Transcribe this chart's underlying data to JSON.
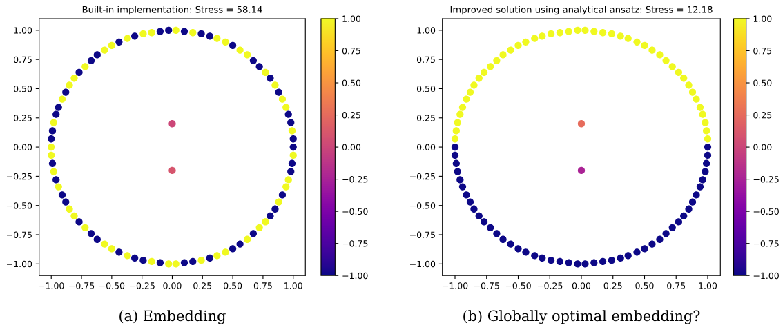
{
  "chart_data": [
    {
      "type": "scatter",
      "title": "Built-in implementation: Stress = 58.14",
      "marker": "circle",
      "grid": false,
      "xlim": [
        -1.1,
        1.1
      ],
      "ylim": [
        -1.1,
        1.1
      ],
      "xticks": [
        {
          "value": -1.0,
          "label": "−1.00"
        },
        {
          "value": -0.75,
          "label": "−0.75"
        },
        {
          "value": -0.5,
          "label": "−0.50"
        },
        {
          "value": -0.25,
          "label": "−0.25"
        },
        {
          "value": 0.0,
          "label": "0.00"
        },
        {
          "value": 0.25,
          "label": "0.25"
        },
        {
          "value": 0.5,
          "label": "0.50"
        },
        {
          "value": 0.75,
          "label": "0.75"
        },
        {
          "value": 1.0,
          "label": "1.00"
        }
      ],
      "yticks": [
        {
          "value": -1.0,
          "label": "−1.00"
        },
        {
          "value": -0.75,
          "label": "−0.75"
        },
        {
          "value": -0.5,
          "label": "−0.50"
        },
        {
          "value": -0.25,
          "label": "−0.25"
        },
        {
          "value": 0.0,
          "label": "0.00"
        },
        {
          "value": 0.25,
          "label": "0.25"
        },
        {
          "value": 0.5,
          "label": "0.50"
        },
        {
          "value": 0.75,
          "label": "0.75"
        },
        {
          "value": 1.0,
          "label": "1.00"
        }
      ],
      "clim": [
        -1.0,
        1.0
      ],
      "cticks": [
        {
          "value": -1.0,
          "label": "−1.00"
        },
        {
          "value": -0.75,
          "label": "−0.75"
        },
        {
          "value": -0.5,
          "label": "−0.50"
        },
        {
          "value": -0.25,
          "label": "−0.25"
        },
        {
          "value": 0.0,
          "label": "0.00"
        },
        {
          "value": 0.25,
          "label": "0.25"
        },
        {
          "value": 0.5,
          "label": "0.50"
        },
        {
          "value": 0.75,
          "label": "0.75"
        },
        {
          "value": 1.0,
          "label": "1.00"
        }
      ],
      "annotations": [
        "(a) Embedding"
      ],
      "series": [
        {
          "x": [
            0.99,
            0.94,
            0.91,
            0.85,
            0.77,
            0.62,
            0.56,
            0.44,
            0.37,
            0.17,
            0.03,
            -0.17,
            -0.24,
            -0.37,
            -0.5,
            -0.56,
            -0.72,
            -0.81,
            -0.85,
            -0.91,
            -0.98,
            -1.0,
            -1.0,
            -0.98,
            -0.94,
            -0.85,
            -0.81,
            -0.72,
            -0.56,
            -0.5,
            -0.37,
            -0.17,
            -0.03,
            0.03,
            0.24,
            0.37,
            0.44,
            0.62,
            0.72,
            0.77,
            0.88,
            0.94,
            0.96,
            1.0
          ],
          "values": [
            0.14,
            0.34,
            0.41,
            0.53,
            0.64,
            0.79,
            0.83,
            0.9,
            0.93,
            0.98,
            1.0,
            0.98,
            0.97,
            0.93,
            0.87,
            0.83,
            0.69,
            0.59,
            0.53,
            0.41,
            0.21,
            0.0,
            -0.07,
            -0.21,
            -0.34,
            -0.53,
            -0.59,
            -0.69,
            -0.83,
            -0.87,
            -0.93,
            -0.98,
            -1.0,
            -1.0,
            -0.97,
            -0.93,
            -0.9,
            -0.79,
            -0.69,
            -0.64,
            -0.47,
            -0.34,
            -0.28,
            -0.07
          ],
          "cvalues": [
            1,
            1,
            1,
            1,
            1,
            1,
            1,
            1,
            1,
            1,
            1,
            1,
            1,
            1,
            1,
            1,
            1,
            1,
            1,
            1,
            1,
            1,
            1,
            1,
            1,
            1,
            1,
            1,
            1,
            1,
            1,
            1,
            1,
            1,
            1,
            1,
            1,
            1,
            1,
            1,
            1,
            1,
            1,
            1
          ]
        },
        {
          "x": [
            1.0,
            1.0,
            0.98,
            0.96,
            0.88,
            0.81,
            0.72,
            0.67,
            0.5,
            0.31,
            0.24,
            0.1,
            -0.03,
            -0.1,
            -0.31,
            -0.44,
            -0.62,
            -0.67,
            -0.77,
            -0.88,
            -0.94,
            -0.96,
            -0.99,
            -1.0,
            -0.99,
            -0.96,
            -0.91,
            -0.88,
            -0.77,
            -0.67,
            -0.62,
            -0.44,
            -0.31,
            -0.24,
            -0.1,
            0.1,
            0.17,
            0.31,
            0.5,
            0.56,
            0.67,
            0.81,
            0.85,
            0.91,
            0.98,
            0.99
          ],
          "values": [
            0.0,
            0.07,
            0.21,
            0.28,
            0.47,
            0.59,
            0.69,
            0.74,
            0.87,
            0.95,
            0.97,
            0.99,
            1.0,
            0.99,
            0.95,
            0.9,
            0.79,
            0.74,
            0.64,
            0.47,
            0.34,
            0.28,
            0.14,
            0.07,
            -0.14,
            -0.28,
            -0.41,
            -0.47,
            -0.64,
            -0.74,
            -0.79,
            -0.9,
            -0.95,
            -0.97,
            -0.99,
            -0.99,
            -0.98,
            -0.95,
            -0.87,
            -0.83,
            -0.74,
            -0.59,
            -0.53,
            -0.41,
            -0.21,
            -0.14
          ],
          "cvalues": [
            -1,
            -1,
            -1,
            -1,
            -1,
            -1,
            -1,
            -1,
            -1,
            -1,
            -1,
            -1,
            -1,
            -1,
            -1,
            -1,
            -1,
            -1,
            -1,
            -1,
            -1,
            -1,
            -1,
            -1,
            -1,
            -1,
            -1,
            -1,
            -1,
            -1,
            -1,
            -1,
            -1,
            -1,
            -1,
            -1,
            -1,
            -1,
            -1,
            -1,
            -1,
            -1,
            -1,
            -1,
            -1,
            -1
          ]
        },
        {
          "x": [
            0.0
          ],
          "values": [
            0.2
          ],
          "cvalues": [
            0.0
          ]
        },
        {
          "x": [
            0.0
          ],
          "values": [
            -0.2
          ],
          "cvalues": [
            0.1
          ]
        }
      ]
    },
    {
      "type": "scatter",
      "title": "Improved solution using analytical ansatz: Stress = 12.18",
      "marker": "circle",
      "grid": false,
      "xlim": [
        -1.1,
        1.1
      ],
      "ylim": [
        -1.1,
        1.1
      ],
      "xticks": [
        {
          "value": -1.0,
          "label": "−1.00"
        },
        {
          "value": -0.75,
          "label": "−0.75"
        },
        {
          "value": -0.5,
          "label": "−0.50"
        },
        {
          "value": -0.25,
          "label": "−0.25"
        },
        {
          "value": 0.0,
          "label": "0.00"
        },
        {
          "value": 0.25,
          "label": "0.25"
        },
        {
          "value": 0.5,
          "label": "0.50"
        },
        {
          "value": 0.75,
          "label": "0.75"
        },
        {
          "value": 1.0,
          "label": "1.00"
        }
      ],
      "yticks": [
        {
          "value": -1.0,
          "label": "−1.00"
        },
        {
          "value": -0.75,
          "label": "−0.75"
        },
        {
          "value": -0.5,
          "label": "−0.50"
        },
        {
          "value": -0.25,
          "label": "−0.25"
        },
        {
          "value": 0.0,
          "label": "0.00"
        },
        {
          "value": 0.25,
          "label": "0.25"
        },
        {
          "value": 0.5,
          "label": "0.50"
        },
        {
          "value": 0.75,
          "label": "0.75"
        },
        {
          "value": 1.0,
          "label": "1.00"
        }
      ],
      "clim": [
        -1.0,
        1.0
      ],
      "cticks": [
        {
          "value": -1.0,
          "label": "−1.00"
        },
        {
          "value": -0.75,
          "label": "−0.75"
        },
        {
          "value": -0.5,
          "label": "−0.50"
        },
        {
          "value": -0.25,
          "label": "−0.25"
        },
        {
          "value": 0.0,
          "label": "0.00"
        },
        {
          "value": 0.25,
          "label": "0.25"
        },
        {
          "value": 0.5,
          "label": "0.50"
        },
        {
          "value": 0.75,
          "label": "0.75"
        },
        {
          "value": 1.0,
          "label": "1.00"
        }
      ],
      "annotations": [
        "(b) Globally optimal embedding?"
      ],
      "series": [
        {
          "x": [
            1.0,
            0.99,
            0.98,
            0.96,
            0.94,
            0.91,
            0.88,
            0.85,
            0.81,
            0.77,
            0.72,
            0.67,
            0.62,
            0.56,
            0.5,
            0.44,
            0.37,
            0.31,
            0.24,
            0.17,
            0.1,
            0.03,
            -0.03,
            -0.1,
            -0.17,
            -0.24,
            -0.31,
            -0.37,
            -0.44,
            -0.5,
            -0.56,
            -0.62,
            -0.67,
            -0.72,
            -0.77,
            -0.81,
            -0.85,
            -0.88,
            -0.91,
            -0.94,
            -0.96,
            -0.98,
            -0.99,
            -1.0
          ],
          "values": [
            0.07,
            0.14,
            0.21,
            0.28,
            0.34,
            0.41,
            0.47,
            0.53,
            0.59,
            0.64,
            0.69,
            0.74,
            0.79,
            0.83,
            0.87,
            0.9,
            0.93,
            0.95,
            0.97,
            0.98,
            0.99,
            1.0,
            1.0,
            0.99,
            0.98,
            0.97,
            0.95,
            0.93,
            0.9,
            0.87,
            0.83,
            0.79,
            0.74,
            0.69,
            0.64,
            0.59,
            0.53,
            0.47,
            0.41,
            0.34,
            0.28,
            0.21,
            0.14,
            0.07
          ],
          "cvalues": [
            1,
            1,
            1,
            1,
            1,
            1,
            1,
            1,
            1,
            1,
            1,
            1,
            1,
            1,
            1,
            1,
            1,
            1,
            1,
            1,
            1,
            1,
            1,
            1,
            1,
            1,
            1,
            1,
            1,
            1,
            1,
            1,
            1,
            1,
            1,
            1,
            1,
            1,
            1,
            1,
            1,
            1,
            1,
            1
          ]
        },
        {
          "x": [
            -1.0,
            -1.0,
            -0.99,
            -0.98,
            -0.96,
            -0.94,
            -0.91,
            -0.88,
            -0.85,
            -0.81,
            -0.77,
            -0.72,
            -0.67,
            -0.62,
            -0.56,
            -0.5,
            -0.44,
            -0.37,
            -0.31,
            -0.24,
            -0.17,
            -0.1,
            -0.03,
            0.03,
            0.1,
            0.17,
            0.24,
            0.31,
            0.37,
            0.44,
            0.5,
            0.56,
            0.62,
            0.67,
            0.72,
            0.77,
            0.81,
            0.85,
            0.88,
            0.91,
            0.94,
            0.96,
            0.98,
            0.99,
            1.0,
            1.0
          ],
          "values": [
            0.0,
            -0.07,
            -0.14,
            -0.21,
            -0.28,
            -0.34,
            -0.41,
            -0.47,
            -0.53,
            -0.59,
            -0.64,
            -0.69,
            -0.74,
            -0.79,
            -0.83,
            -0.87,
            -0.9,
            -0.93,
            -0.95,
            -0.97,
            -0.98,
            -0.99,
            -1.0,
            -1.0,
            -0.99,
            -0.98,
            -0.97,
            -0.95,
            -0.93,
            -0.9,
            -0.87,
            -0.83,
            -0.79,
            -0.74,
            -0.69,
            -0.64,
            -0.59,
            -0.53,
            -0.47,
            -0.41,
            -0.34,
            -0.28,
            -0.21,
            -0.14,
            -0.07,
            0.0
          ],
          "cvalues": [
            -1,
            -1,
            -1,
            -1,
            -1,
            -1,
            -1,
            -1,
            -1,
            -1,
            -1,
            -1,
            -1,
            -1,
            -1,
            -1,
            -1,
            -1,
            -1,
            -1,
            -1,
            -1,
            -1,
            -1,
            -1,
            -1,
            -1,
            -1,
            -1,
            -1,
            -1,
            -1,
            -1,
            -1,
            -1,
            -1,
            -1,
            -1,
            -1,
            -1,
            -1,
            -1,
            -1,
            -1,
            -1,
            -1
          ]
        },
        {
          "x": [
            0.0
          ],
          "values": [
            0.2
          ],
          "cvalues": [
            0.25
          ]
        },
        {
          "x": [
            0.0
          ],
          "values": [
            -0.2
          ],
          "cvalues": [
            -0.25
          ]
        }
      ]
    }
  ]
}
